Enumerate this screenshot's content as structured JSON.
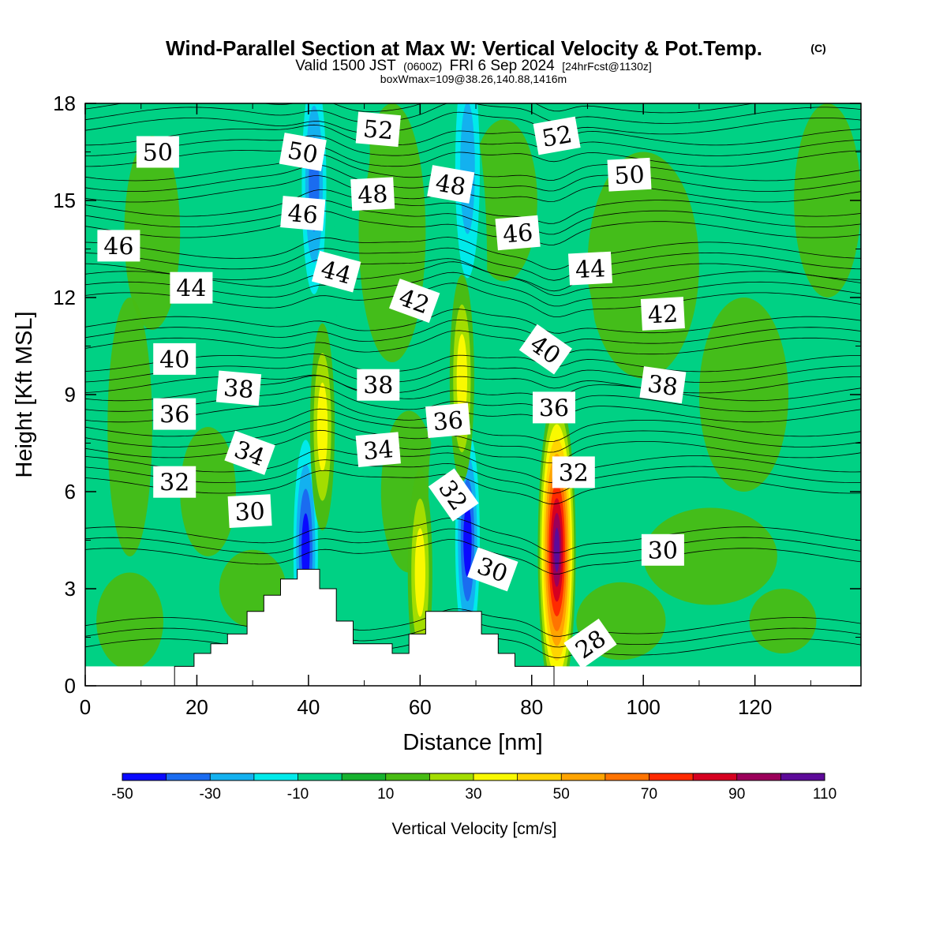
{
  "title": {
    "main": "Wind-Parallel Section at Max W: Vertical Velocity & Pot.Temp.",
    "copyright": "(C)",
    "line2_a": "Valid 1500 JST",
    "line2_b": "(0600Z)",
    "line2_c": "FRI 6 Sep 2024",
    "line2_d": "[24hrFcst@1130z]",
    "line3": "boxWmax=109@38.26,140.88,1416m"
  },
  "chart_data": {
    "type": "heatmap",
    "xlabel": "Distance [nm]",
    "ylabel": "Height [Kft MSL]",
    "xlim": [
      0,
      139
    ],
    "ylim": [
      0,
      18
    ],
    "x_ticks": [
      "0",
      "20",
      "40",
      "60",
      "80",
      "100",
      "120"
    ],
    "y_ticks": [
      "0",
      "3",
      "6",
      "9",
      "12",
      "15",
      "18"
    ],
    "colorbar": {
      "label": "Vertical Velocity [cm/s]",
      "tick_labels": [
        "-50",
        "-30",
        "-10",
        "10",
        "30",
        "50",
        "70",
        "90",
        "110"
      ],
      "levels": [
        -50,
        -40,
        -30,
        -20,
        -10,
        0,
        10,
        20,
        30,
        40,
        50,
        60,
        70,
        80,
        90,
        100,
        110,
        120
      ],
      "colors": [
        "#0a0aff",
        "#1a6cf0",
        "#13b1ef",
        "#00eaea",
        "#00d184",
        "#17b22f",
        "#48bc14",
        "#a3dd00",
        "#f9f900",
        "#ffd400",
        "#ffa400",
        "#ff7400",
        "#ff2a00",
        "#d60020",
        "#9b005a",
        "#5d0a99"
      ]
    },
    "terrain_kft": [
      [
        0,
        0
      ],
      [
        16,
        0
      ],
      [
        16,
        0.6
      ],
      [
        19.5,
        0.6
      ],
      [
        19.5,
        1
      ],
      [
        22.5,
        1
      ],
      [
        22.5,
        1.3
      ],
      [
        25.5,
        1.3
      ],
      [
        25.5,
        1.6
      ],
      [
        29,
        1.6
      ],
      [
        29,
        2.3
      ],
      [
        32,
        2.3
      ],
      [
        32,
        2.8
      ],
      [
        35,
        2.8
      ],
      [
        35,
        3.3
      ],
      [
        38,
        3.3
      ],
      [
        38,
        3.6
      ],
      [
        42,
        3.6
      ],
      [
        42,
        3
      ],
      [
        45,
        3
      ],
      [
        45,
        2
      ],
      [
        48,
        2
      ],
      [
        48,
        1.3
      ],
      [
        55,
        1.3
      ],
      [
        55,
        1
      ],
      [
        58,
        1
      ],
      [
        58,
        1.6
      ],
      [
        61,
        1.6
      ],
      [
        61,
        2.3
      ],
      [
        67,
        2.3
      ],
      [
        67,
        2.3
      ],
      [
        71,
        2.3
      ],
      [
        71,
        1.6
      ],
      [
        74,
        1.6
      ],
      [
        74,
        1
      ],
      [
        77,
        1
      ],
      [
        77,
        0.6
      ],
      [
        84,
        0.6
      ],
      [
        84,
        0
      ],
      [
        139,
        0
      ]
    ],
    "updraft_cores": [
      {
        "x": 84.5,
        "y": 4.2,
        "w_max": 109
      },
      {
        "x": 42.5,
        "y": 8.0,
        "w_max": 30
      },
      {
        "x": 60,
        "y": 3.5,
        "w_max": 30
      },
      {
        "x": 67.5,
        "y": 9.5,
        "w_max": 30
      }
    ],
    "downdraft_cores": [
      {
        "x": 39.5,
        "y": 4.2,
        "w_min": -40
      },
      {
        "x": 68.5,
        "y": 4.5,
        "w_min": -40
      },
      {
        "x": 41,
        "y": 15.5,
        "w_min": -30
      },
      {
        "x": 68.5,
        "y": 16.0,
        "w_min": -20
      }
    ],
    "theta_contours": [
      {
        "value": 28,
        "y_kft": 1.2
      },
      {
        "value": 30,
        "y_kft": 4.0
      },
      {
        "value": 32,
        "y_kft": 6.2
      },
      {
        "value": 34,
        "y_kft": 7.3
      },
      {
        "value": 36,
        "y_kft": 8.4
      },
      {
        "value": 38,
        "y_kft": 9.3
      },
      {
        "value": 40,
        "y_kft": 10.5
      },
      {
        "value": 42,
        "y_kft": 11.9
      },
      {
        "value": 44,
        "y_kft": 12.8
      },
      {
        "value": 46,
        "y_kft": 14.1
      },
      {
        "value": 48,
        "y_kft": 15.2
      },
      {
        "value": 50,
        "y_kft": 16.3
      },
      {
        "value": 52,
        "y_kft": 17.3
      }
    ],
    "contour_labels": [
      {
        "text": "50",
        "x": 13,
        "y": 16.5,
        "rot": 0
      },
      {
        "text": "50",
        "x": 39,
        "y": 16.5,
        "rot": 10
      },
      {
        "text": "52",
        "x": 52.5,
        "y": 17.2,
        "rot": 5
      },
      {
        "text": "52",
        "x": 84.5,
        "y": 17.0,
        "rot": -10
      },
      {
        "text": "50",
        "x": 97.5,
        "y": 15.8,
        "rot": -3
      },
      {
        "text": "48",
        "x": 51.5,
        "y": 15.2,
        "rot": -3
      },
      {
        "text": "48",
        "x": 65.5,
        "y": 15.5,
        "rot": 10
      },
      {
        "text": "46",
        "x": 6,
        "y": 13.6,
        "rot": 0
      },
      {
        "text": "46",
        "x": 39,
        "y": 14.6,
        "rot": 5
      },
      {
        "text": "46",
        "x": 77.5,
        "y": 14.0,
        "rot": -5
      },
      {
        "text": "44",
        "x": 19,
        "y": 12.3,
        "rot": 0
      },
      {
        "text": "44",
        "x": 45,
        "y": 12.8,
        "rot": 15
      },
      {
        "text": "44",
        "x": 90.5,
        "y": 12.9,
        "rot": -3
      },
      {
        "text": "42",
        "x": 59,
        "y": 11.9,
        "rot": 20
      },
      {
        "text": "42",
        "x": 103.5,
        "y": 11.5,
        "rot": -3
      },
      {
        "text": "40",
        "x": 16,
        "y": 10.1,
        "rot": 0
      },
      {
        "text": "40",
        "x": 82.5,
        "y": 10.4,
        "rot": 35
      },
      {
        "text": "38",
        "x": 27.5,
        "y": 9.2,
        "rot": 5
      },
      {
        "text": "38",
        "x": 52.5,
        "y": 9.3,
        "rot": 0
      },
      {
        "text": "38",
        "x": 103.5,
        "y": 9.3,
        "rot": 8
      },
      {
        "text": "36",
        "x": 16,
        "y": 8.4,
        "rot": 0
      },
      {
        "text": "36",
        "x": 65,
        "y": 8.2,
        "rot": -5
      },
      {
        "text": "36",
        "x": 84,
        "y": 8.6,
        "rot": 0
      },
      {
        "text": "34",
        "x": 29.5,
        "y": 7.2,
        "rot": 20
      },
      {
        "text": "34",
        "x": 52.5,
        "y": 7.3,
        "rot": -5
      },
      {
        "text": "32",
        "x": 16,
        "y": 6.3,
        "rot": 0
      },
      {
        "text": "32",
        "x": 66,
        "y": 5.9,
        "rot": 55
      },
      {
        "text": "32",
        "x": 87.5,
        "y": 6.6,
        "rot": 0
      },
      {
        "text": "30",
        "x": 29.5,
        "y": 5.4,
        "rot": -3
      },
      {
        "text": "30",
        "x": 73,
        "y": 3.6,
        "rot": 20
      },
      {
        "text": "30",
        "x": 103.5,
        "y": 4.2,
        "rot": 0
      },
      {
        "text": "28",
        "x": 90.5,
        "y": 1.3,
        "rot": -35
      }
    ]
  }
}
